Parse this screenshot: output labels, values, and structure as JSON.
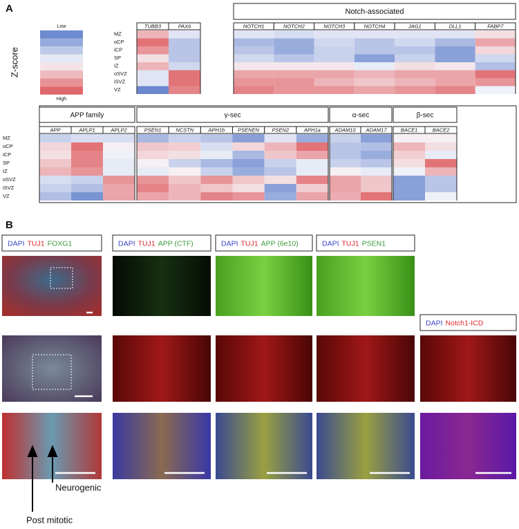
{
  "panel_a": {
    "label": "A",
    "legend": {
      "title": "Z-score",
      "low": "Low",
      "high": "High"
    },
    "colorscale": {
      "low": "#5b7bc9",
      "mid": "#f7f7fb",
      "high": "#dd5356"
    },
    "zlim": [
      -2,
      2
    ],
    "rows": [
      "MZ",
      "oCP",
      "iCP",
      "SP",
      "IZ",
      "oSVZ",
      "iSVZ",
      "VZ"
    ],
    "top_groups": [
      {
        "genes": [
          {
            "name": "TUBB3",
            "values": [
              0.8,
              1.6,
              1.2,
              0.3,
              0.8,
              -0.3,
              -0.3,
              -1.8
            ]
          },
          {
            "name": "PAX6",
            "values": [
              -0.3,
              -0.8,
              -0.8,
              -0.8,
              -0.5,
              1.6,
              1.6,
              1.4
            ]
          }
        ]
      },
      {
        "title": "Notch-associated",
        "genes": [
          {
            "name": "NOTCH1",
            "values": [
              -0.3,
              -1.0,
              -0.8,
              -0.5,
              0.2,
              1.0,
              1.2,
              1.4
            ]
          },
          {
            "name": "NOTCH2",
            "values": [
              -0.4,
              -1.2,
              -1.2,
              -0.8,
              0.2,
              1.0,
              1.2,
              1.2
            ]
          },
          {
            "name": "NOTCH3",
            "values": [
              -0.3,
              -0.5,
              -0.6,
              -0.6,
              0.2,
              1.0,
              0.8,
              1.2
            ]
          },
          {
            "name": "NOTCH4",
            "values": [
              -0.3,
              -0.8,
              -0.8,
              -1.4,
              -0.2,
              0.8,
              0.6,
              1.0
            ]
          },
          {
            "name": "JAG1",
            "values": [
              -0.3,
              -0.5,
              -0.8,
              -0.6,
              0.3,
              1.0,
              0.8,
              1.2
            ]
          },
          {
            "name": "DLL1",
            "values": [
              -0.3,
              -1.0,
              -1.4,
              -1.4,
              0.2,
              1.0,
              1.0,
              1.4
            ]
          },
          {
            "name": "FABP7",
            "values": [
              0.3,
              1.0,
              0.4,
              -0.5,
              -0.9,
              1.6,
              1.2,
              -0.1
            ]
          }
        ]
      }
    ],
    "bottom_groups": [
      {
        "title": "APP family",
        "genes": [
          {
            "name": "APP",
            "values": [
              -0.6,
              0.4,
              0.3,
              0.6,
              0.8,
              -0.4,
              -0.6,
              -0.9
            ]
          },
          {
            "name": "APLP1",
            "values": [
              -0.4,
              1.6,
              1.4,
              1.4,
              1.2,
              -0.6,
              -0.9,
              -1.6
            ]
          },
          {
            "name": "APLP2",
            "values": [
              -0.4,
              0.1,
              -0.1,
              -0.2,
              -0.2,
              1.2,
              1.0,
              1.0
            ]
          }
        ]
      },
      {
        "title": "γ-sec",
        "genes": [
          {
            "name": "PSEN1",
            "values": [
              -1.0,
              0.6,
              0.4,
              0.1,
              -0.2,
              1.2,
              1.4,
              1.0
            ]
          },
          {
            "name": "NCSTN",
            "values": [
              -0.6,
              0.5,
              0.3,
              -0.6,
              0.1,
              0.6,
              0.8,
              0.8
            ]
          },
          {
            "name": "APH1b",
            "values": [
              -0.8,
              -0.4,
              -0.2,
              -1.0,
              -0.6,
              1.2,
              0.6,
              1.4
            ]
          },
          {
            "name": "PSENEN",
            "values": [
              -1.4,
              0.4,
              -1.0,
              -1.4,
              -1.2,
              0.6,
              0.3,
              1.2
            ]
          },
          {
            "name": "PSEN2",
            "values": [
              -0.3,
              0.8,
              0.6,
              -0.6,
              -0.8,
              0.3,
              -1.4,
              -1.2
            ]
          },
          {
            "name": "APH1a",
            "values": [
              -1.2,
              1.6,
              1.0,
              -0.2,
              -0.2,
              1.4,
              0.5,
              1.0
            ]
          }
        ]
      },
      {
        "title": "α-sec",
        "genes": [
          {
            "name": "ADAM10",
            "values": [
              -0.6,
              -0.8,
              -0.8,
              -0.6,
              0.1,
              1.0,
              1.0,
              0.9
            ]
          },
          {
            "name": "ADAM17",
            "values": [
              -1.4,
              -0.9,
              -1.2,
              -0.8,
              -0.2,
              0.6,
              0.6,
              1.6
            ]
          }
        ]
      },
      {
        "title": "β-sec",
        "genes": [
          {
            "name": "BACE1",
            "values": [
              0.1,
              0.8,
              0.5,
              0.3,
              -0.1,
              -1.4,
              -1.4,
              -1.4
            ]
          },
          {
            "name": "BACE2",
            "values": [
              0.1,
              0.3,
              -0.2,
              1.6,
              0.8,
              -0.8,
              -0.8,
              -0.1
            ]
          }
        ]
      }
    ]
  },
  "panel_b": {
    "label": "B",
    "captions": [
      [
        {
          "text": "DAPI",
          "color": "#3a44c8"
        },
        {
          "text": "TUJ1",
          "color": "#d9262a"
        },
        {
          "text": "FOXG1",
          "color": "#3a9a3a"
        }
      ],
      [
        {
          "text": "DAPI",
          "color": "#3a44c8"
        },
        {
          "text": "TUJ1",
          "color": "#d9262a"
        },
        {
          "text": "APP (CTF)",
          "color": "#3a9a3a"
        }
      ],
      [
        {
          "text": "DAPI",
          "color": "#3a44c8"
        },
        {
          "text": "TUJ1",
          "color": "#d9262a"
        },
        {
          "text": "APP (6e10)",
          "color": "#3a9a3a"
        }
      ],
      [
        {
          "text": "DAPI",
          "color": "#3a44c8"
        },
        {
          "text": "TUJ1",
          "color": "#d9262a"
        },
        {
          "text": "PSEN1",
          "color": "#3a9a3a"
        }
      ],
      [
        {
          "text": "DAPI",
          "color": "#3a44c8"
        },
        {
          "text": "Notch1-ICD",
          "color": "#d9262a"
        }
      ]
    ],
    "annotations": [
      "Neurogenic",
      "Post mitotic"
    ]
  }
}
